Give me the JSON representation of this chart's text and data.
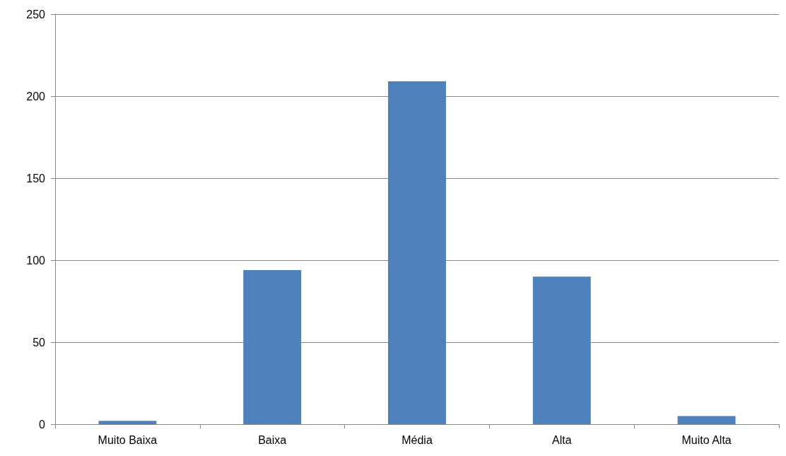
{
  "chart_data": {
    "type": "bar",
    "categories": [
      "Muito Baixa",
      "Baixa",
      "Média",
      "Alta",
      "Muito Alta"
    ],
    "values": [
      2,
      94,
      209,
      90,
      5
    ],
    "color": "#4f81bd",
    "ylim": [
      0,
      250
    ],
    "yticks": [
      0,
      50,
      100,
      150,
      200,
      250
    ],
    "grid": "y"
  }
}
